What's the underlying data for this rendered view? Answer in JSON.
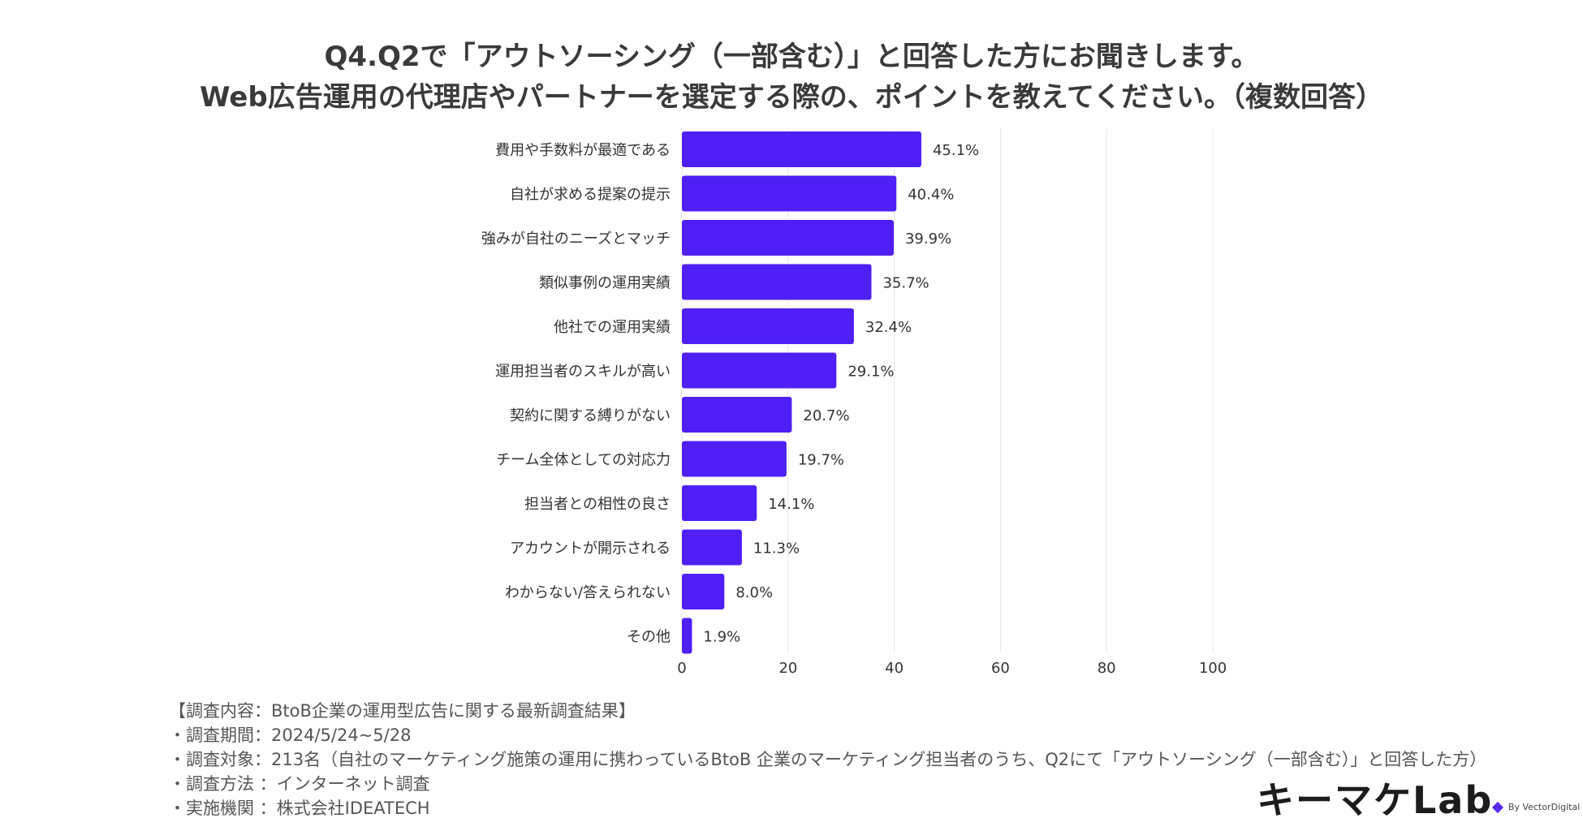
{
  "title": {
    "line1": "Q4.Q2で「アウトソーシング（一部含む）」と回答した方にお聞きします。",
    "line2": "Web広告運用の代理店やパートナーを選定する際の、ポイントを教えてください。（複数回答）"
  },
  "chart_data": {
    "type": "bar",
    "orientation": "horizontal",
    "title": "Q4.Q2で「アウトソーシング（一部含む）」と回答した方にお聞きします。Web広告運用の代理店やパートナーを選定する際の、ポイントを教えてください。（複数回答）",
    "categories": [
      "費用や手数料が最適である",
      "自社が求める提案の提示",
      "強みが自社のニーズとマッチ",
      "類似事例の運用実績",
      "他社での運用実績",
      "運用担当者のスキルが高い",
      "契約に関する縛りがない",
      "チーム全体としての対応力",
      "担当者との相性の良さ",
      "アカウントが開示される",
      "わからない/答えられない",
      "その他"
    ],
    "values": [
      45.1,
      40.4,
      39.9,
      35.7,
      32.4,
      29.1,
      20.7,
      19.7,
      14.1,
      11.3,
      8.0,
      1.9
    ],
    "value_labels": [
      "45.1%",
      "40.4%",
      "39.9%",
      "35.7%",
      "32.4%",
      "29.1%",
      "20.7%",
      "19.7%",
      "14.1%",
      "11.3%",
      "8.0%",
      "1.9%"
    ],
    "xlim": [
      0,
      100
    ],
    "xticks": [
      "0",
      "20",
      "40",
      "60",
      "80",
      "100"
    ],
    "xlabel": "",
    "ylabel": "",
    "grid": true,
    "bar_color": "#4f1ff5"
  },
  "footnotes": [
    "【調査内容：BtoB企業の運用型広告に関する最新調査結果】",
    "・調査期間：2024/5/24~5/28",
    "・調査対象：213名（自社のマーケティング施策の運用に携わっているBtoB 企業のマーケティング担当者のうち、Q2にて「アウトソーシング（一部含む）」と回答した方）",
    "・調査方法 ：インターネット調査",
    "・実施機関 ：株式会社IDEATECH"
  ],
  "logo": {
    "text": "キーマケLab",
    "byline": "By VectorDigital",
    "accent_color": "#5a2cf0"
  }
}
